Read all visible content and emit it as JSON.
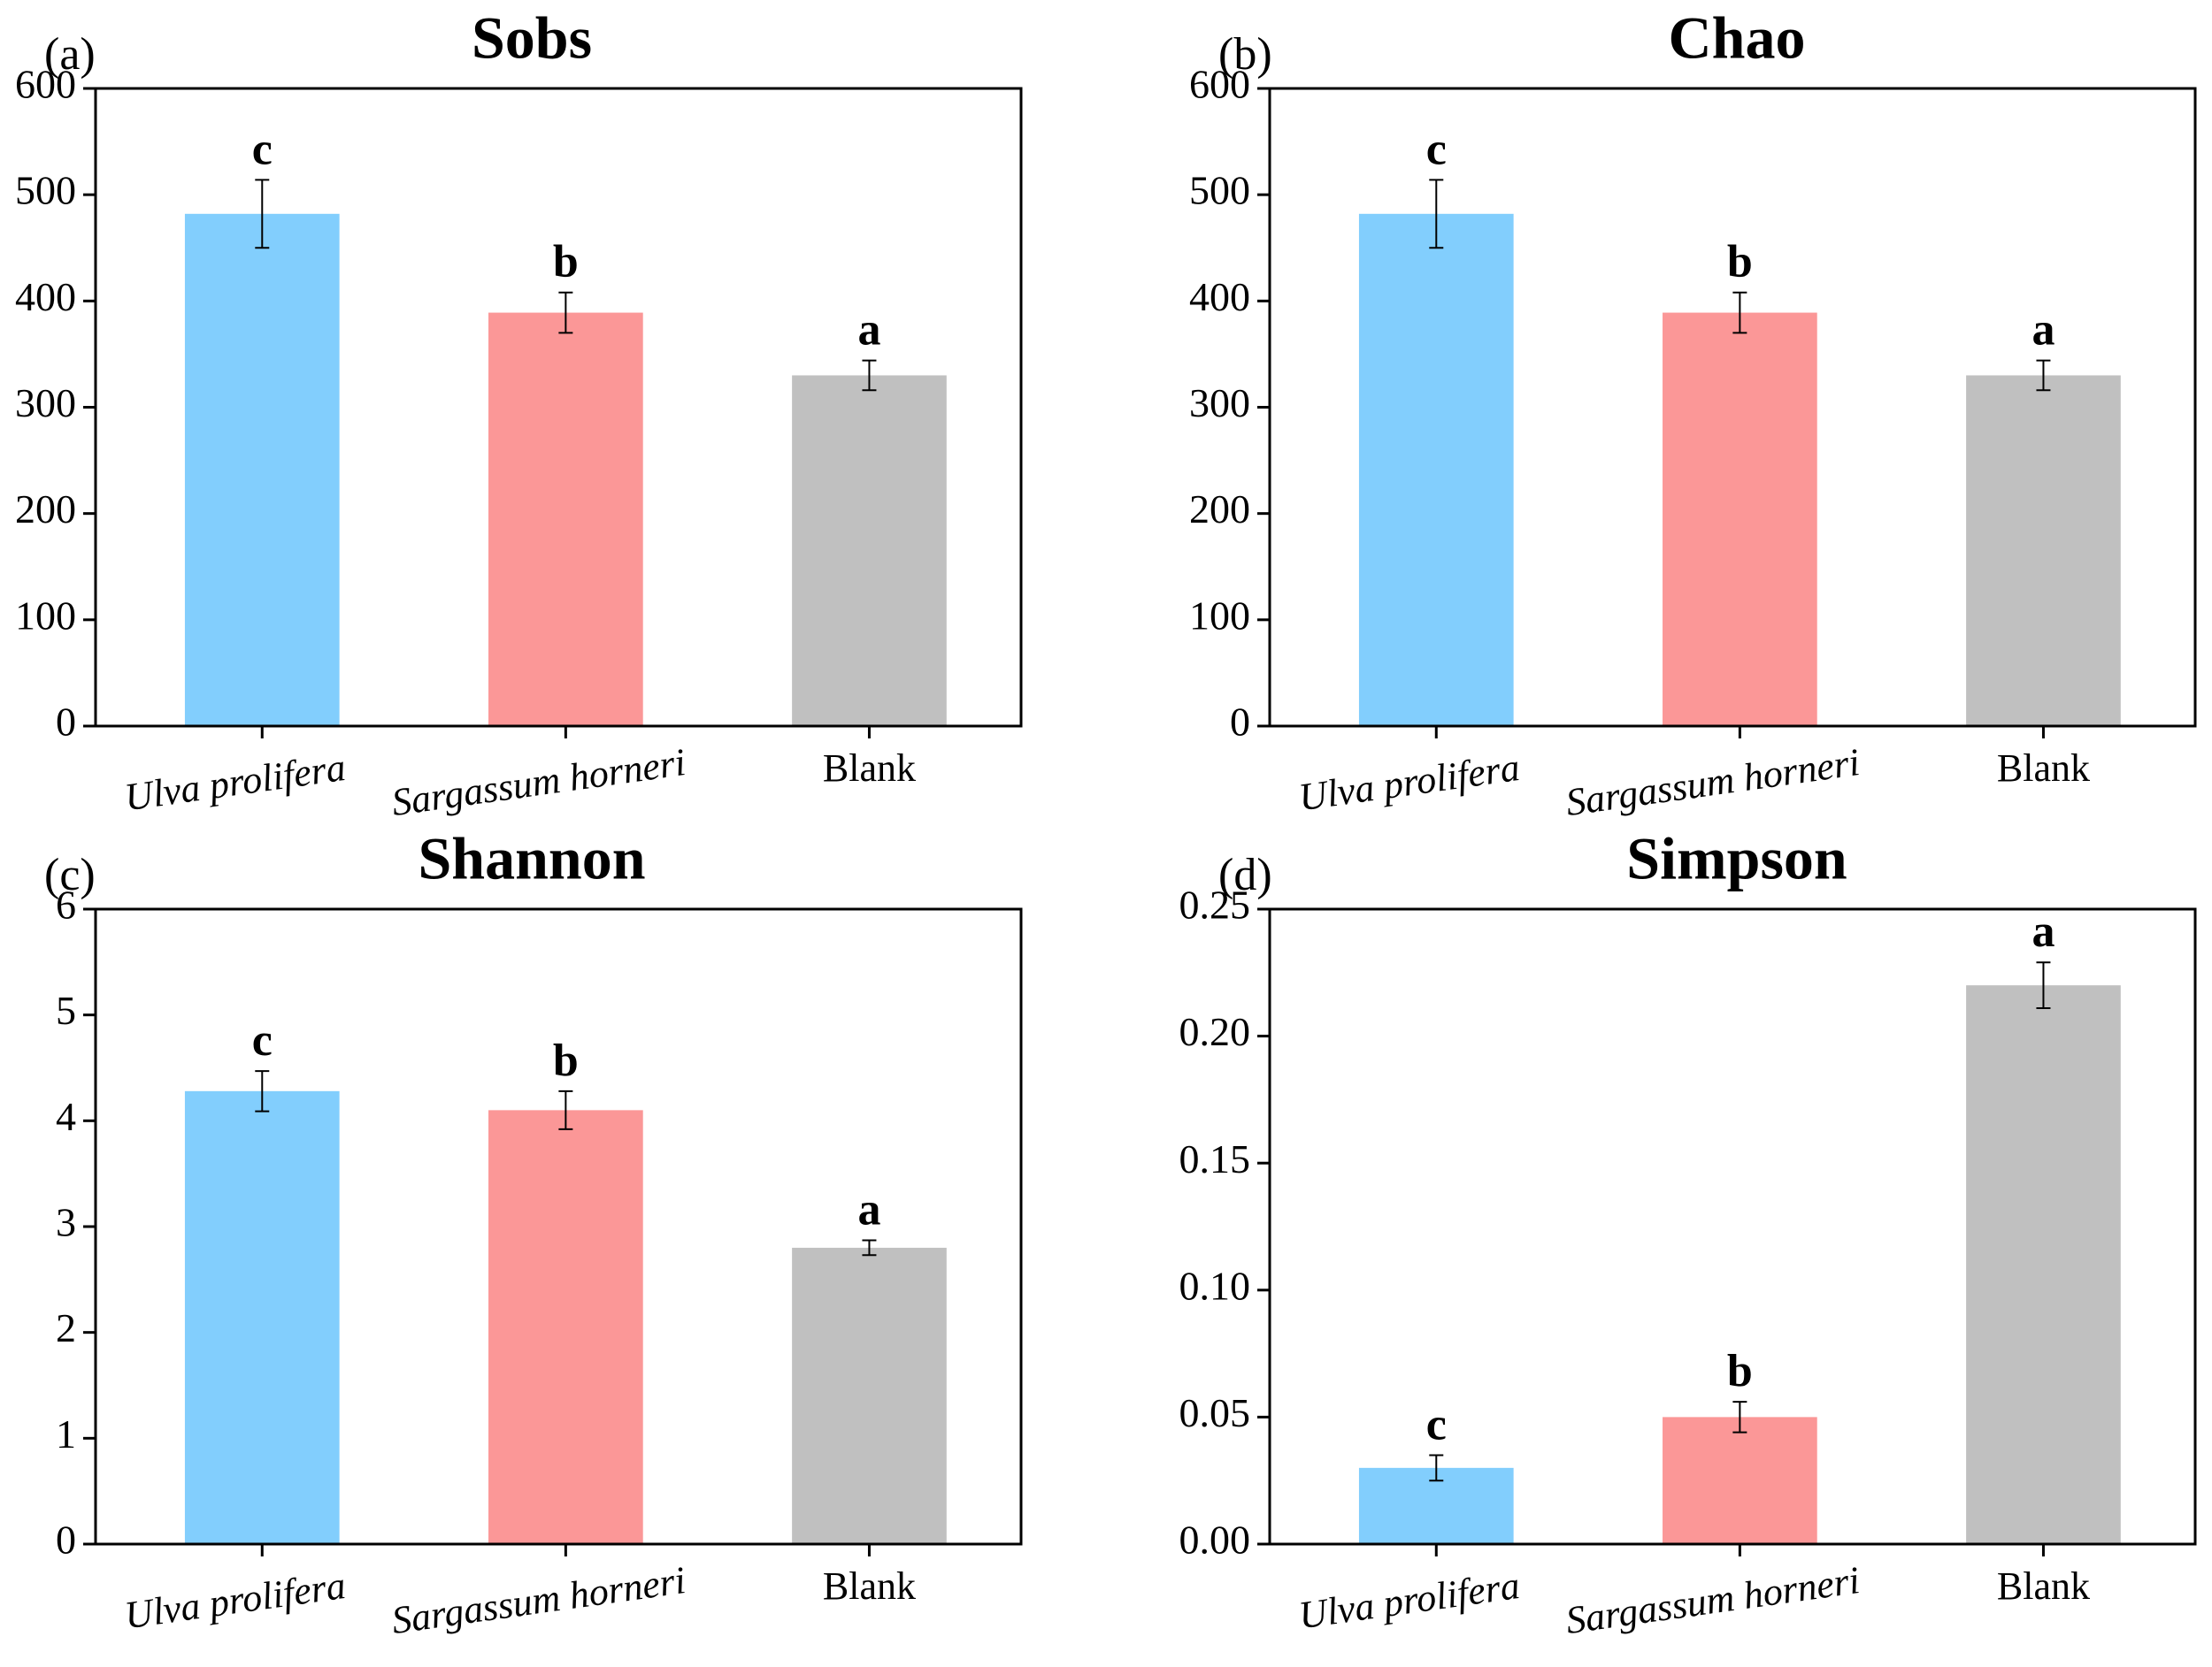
{
  "chart_data": [
    {
      "type": "bar",
      "panel_label": "(a)",
      "title": "Sobs",
      "categories": [
        "Ulva prolifera",
        "Sargassum horneri",
        "Blank"
      ],
      "category_styles": [
        "italic",
        "italic",
        "normal"
      ],
      "values": [
        482,
        389,
        330
      ],
      "errors": [
        32,
        19,
        14
      ],
      "letters": [
        "c",
        "b",
        "a"
      ],
      "colors": [
        "#82cefd",
        "#fb9797",
        "#c0c0c0"
      ],
      "ylim": [
        0,
        600
      ],
      "yticks": [
        0,
        100,
        200,
        300,
        400,
        500,
        600
      ]
    },
    {
      "type": "bar",
      "panel_label": "(b)",
      "title": "Chao",
      "categories": [
        "Ulva prolifera",
        "Sargassum horneri",
        "Blank"
      ],
      "category_styles": [
        "italic",
        "italic",
        "normal"
      ],
      "values": [
        482,
        389,
        330
      ],
      "errors": [
        32,
        19,
        14
      ],
      "letters": [
        "c",
        "b",
        "a"
      ],
      "colors": [
        "#82cefd",
        "#fb9797",
        "#c0c0c0"
      ],
      "ylim": [
        0,
        600
      ],
      "yticks": [
        0,
        100,
        200,
        300,
        400,
        500,
        600
      ]
    },
    {
      "type": "bar",
      "panel_label": "(c)",
      "title": "Shannon",
      "categories": [
        "Ulva prolifera",
        "Sargassum horneri",
        "Blank"
      ],
      "category_styles": [
        "italic",
        "italic",
        "normal"
      ],
      "values": [
        4.28,
        4.1,
        2.8
      ],
      "errors": [
        0.19,
        0.18,
        0.07
      ],
      "letters": [
        "c",
        "b",
        "a"
      ],
      "colors": [
        "#82cefd",
        "#fb9797",
        "#c0c0c0"
      ],
      "ylim": [
        0,
        6
      ],
      "yticks": [
        0,
        1,
        2,
        3,
        4,
        5,
        6
      ]
    },
    {
      "type": "bar",
      "panel_label": "(d)",
      "title": "Simpson",
      "categories": [
        "Ulva prolifera",
        "Sargassum horneri",
        "Blank"
      ],
      "category_styles": [
        "italic",
        "italic",
        "normal"
      ],
      "values": [
        0.03,
        0.05,
        0.22
      ],
      "errors": [
        0.005,
        0.006,
        0.009
      ],
      "letters": [
        "c",
        "b",
        "a"
      ],
      "colors": [
        "#82cefd",
        "#fb9797",
        "#c0c0c0"
      ],
      "ylim": [
        0,
        0.25
      ],
      "yticks": [
        {
          "value": 0,
          "label": "0.00"
        },
        0.05,
        {
          "value": 0.1,
          "label": "0.10"
        },
        0.15,
        {
          "value": 0.2,
          "label": "0.20"
        },
        0.25
      ]
    }
  ]
}
